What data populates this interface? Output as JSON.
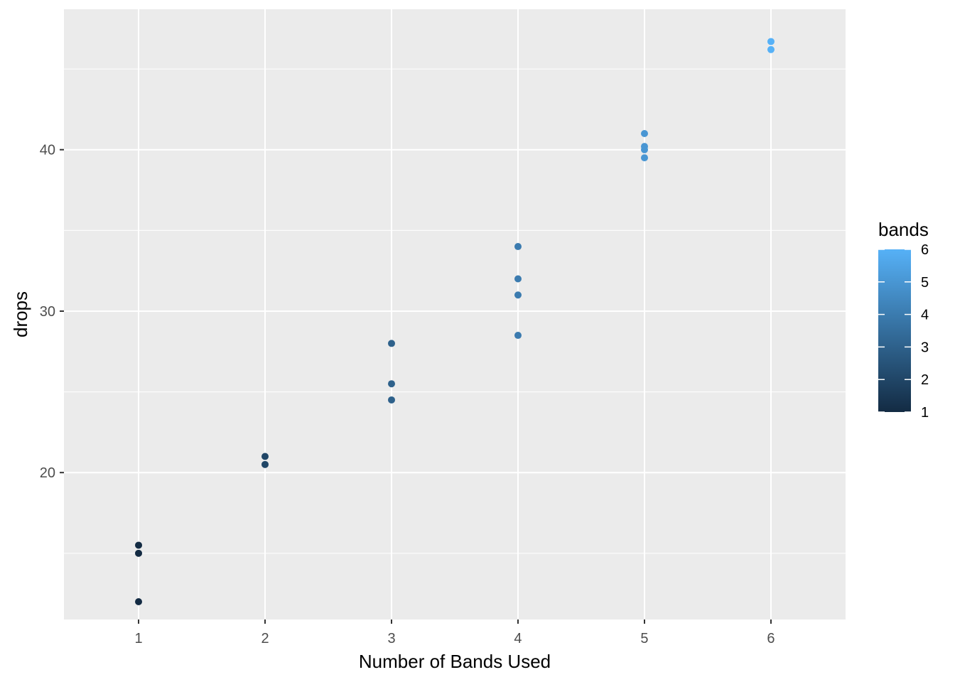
{
  "chart_data": {
    "type": "scatter",
    "title": "",
    "xlabel": "Number of Bands Used",
    "ylabel": "drops",
    "xlim": [
      0.41,
      6.59
    ],
    "ylim": [
      10.9,
      48.7
    ],
    "x_ticks": [
      1,
      2,
      3,
      4,
      5,
      6
    ],
    "x_tick_labels": [
      "1",
      "2",
      "3",
      "4",
      "5",
      "6"
    ],
    "y_ticks": [
      20,
      30,
      40
    ],
    "y_tick_labels": [
      "20",
      "30",
      "40"
    ],
    "y_minor_ticks": [
      15,
      25,
      35,
      45
    ],
    "grid": true,
    "points": [
      {
        "x": 1,
        "y": 12
      },
      {
        "x": 1,
        "y": 15
      },
      {
        "x": 1,
        "y": 15.5
      },
      {
        "x": 2,
        "y": 20.5
      },
      {
        "x": 2,
        "y": 21
      },
      {
        "x": 3,
        "y": 24.5
      },
      {
        "x": 3,
        "y": 25.5
      },
      {
        "x": 3,
        "y": 28
      },
      {
        "x": 4,
        "y": 28.5
      },
      {
        "x": 4,
        "y": 31
      },
      {
        "x": 4,
        "y": 32
      },
      {
        "x": 4,
        "y": 34
      },
      {
        "x": 5,
        "y": 39.5
      },
      {
        "x": 5,
        "y": 40
      },
      {
        "x": 5,
        "y": 40.2
      },
      {
        "x": 5,
        "y": 41
      },
      {
        "x": 6,
        "y": 46.2
      },
      {
        "x": 6,
        "y": 46.7
      }
    ],
    "color_by": "bands",
    "legend": {
      "title": "bands",
      "position": "right",
      "range": [
        1,
        6
      ],
      "ticks": [
        1,
        2,
        3,
        4,
        5,
        6
      ],
      "tick_labels": [
        "1",
        "2",
        "3",
        "4",
        "5",
        "6"
      ],
      "low_color": "#132B43",
      "high_color": "#56B1F7"
    },
    "colors": {
      "panel_background": "#EBEBEB",
      "grid_line": "#FFFFFF"
    }
  }
}
